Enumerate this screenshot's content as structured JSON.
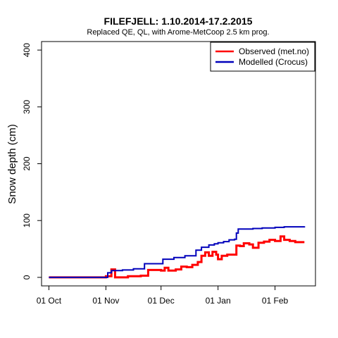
{
  "chart_data": {
    "type": "line",
    "title": "FILEFJELL: 1.10.2014-17.2.2015",
    "subtitle": "Replaced QE, QL,  with Arome-MetCoop 2.5 km prog.",
    "xlabel": "",
    "ylabel": "Snow depth (cm)",
    "x_start": "2014-10-01",
    "x_end": "2015-02-17",
    "xlim": [
      "2014-09-27",
      "2015-02-23"
    ],
    "ylim": [
      -15,
      415
    ],
    "x_ticks": [
      {
        "date": "2014-10-01",
        "label": "01 Oct"
      },
      {
        "date": "2014-11-01",
        "label": "01 Nov"
      },
      {
        "date": "2014-12-01",
        "label": "01 Dec"
      },
      {
        "date": "2015-01-01",
        "label": "01 Jan"
      },
      {
        "date": "2015-02-01",
        "label": "01 Feb"
      }
    ],
    "y_ticks": [
      0,
      100,
      200,
      300,
      400
    ],
    "grid": false,
    "legend_position": "top-right",
    "series": [
      {
        "name": "Observed (met.no)",
        "color": "#ff0000",
        "points": [
          [
            "2014-10-01",
            0
          ],
          [
            "2014-10-28",
            0
          ],
          [
            "2014-11-01",
            2
          ],
          [
            "2014-11-04",
            14
          ],
          [
            "2014-11-06",
            0
          ],
          [
            "2014-11-13",
            2
          ],
          [
            "2014-11-20",
            3
          ],
          [
            "2014-11-24",
            4
          ],
          [
            "2014-11-24",
            13
          ],
          [
            "2014-11-28",
            13
          ],
          [
            "2014-12-01",
            12
          ],
          [
            "2014-12-03",
            17
          ],
          [
            "2014-12-05",
            12
          ],
          [
            "2014-12-09",
            14
          ],
          [
            "2014-12-12",
            19
          ],
          [
            "2014-12-15",
            18
          ],
          [
            "2014-12-18",
            22
          ],
          [
            "2014-12-21",
            27
          ],
          [
            "2014-12-23",
            38
          ],
          [
            "2014-12-25",
            44
          ],
          [
            "2014-12-27",
            38
          ],
          [
            "2014-12-29",
            45
          ],
          [
            "2014-12-31",
            40
          ],
          [
            "2015-01-01",
            32
          ],
          [
            "2015-01-03",
            38
          ],
          [
            "2015-01-06",
            40
          ],
          [
            "2015-01-09",
            40
          ],
          [
            "2015-01-11",
            56
          ],
          [
            "2015-01-13",
            55
          ],
          [
            "2015-01-15",
            60
          ],
          [
            "2015-01-18",
            58
          ],
          [
            "2015-01-20",
            52
          ],
          [
            "2015-01-23",
            61
          ],
          [
            "2015-01-26",
            63
          ],
          [
            "2015-01-29",
            66
          ],
          [
            "2015-02-01",
            64
          ],
          [
            "2015-02-04",
            72
          ],
          [
            "2015-02-06",
            66
          ],
          [
            "2015-02-09",
            64
          ],
          [
            "2015-02-12",
            62
          ],
          [
            "2015-02-17",
            62
          ]
        ]
      },
      {
        "name": "Modelled (Crocus)",
        "color": "#0000bb",
        "points": [
          [
            "2014-10-01",
            0
          ],
          [
            "2014-10-31",
            0
          ],
          [
            "2014-11-02",
            8
          ],
          [
            "2014-11-04",
            12
          ],
          [
            "2014-11-10",
            13
          ],
          [
            "2014-11-16",
            15
          ],
          [
            "2014-11-21",
            15
          ],
          [
            "2014-11-22",
            24
          ],
          [
            "2014-11-28",
            24
          ],
          [
            "2014-12-01",
            24
          ],
          [
            "2014-12-02",
            32
          ],
          [
            "2014-12-08",
            35
          ],
          [
            "2014-12-14",
            38
          ],
          [
            "2014-12-20",
            48
          ],
          [
            "2014-12-23",
            53
          ],
          [
            "2014-12-27",
            57
          ],
          [
            "2014-12-30",
            59
          ],
          [
            "2015-01-01",
            61
          ],
          [
            "2015-01-04",
            63
          ],
          [
            "2015-01-07",
            66
          ],
          [
            "2015-01-10",
            67
          ],
          [
            "2015-01-11",
            78
          ],
          [
            "2015-01-12",
            85
          ],
          [
            "2015-01-15",
            85
          ],
          [
            "2015-01-20",
            86
          ],
          [
            "2015-01-25",
            87
          ],
          [
            "2015-02-01",
            88
          ],
          [
            "2015-02-06",
            89
          ],
          [
            "2015-02-12",
            89
          ],
          [
            "2015-02-17",
            90
          ]
        ]
      }
    ]
  }
}
